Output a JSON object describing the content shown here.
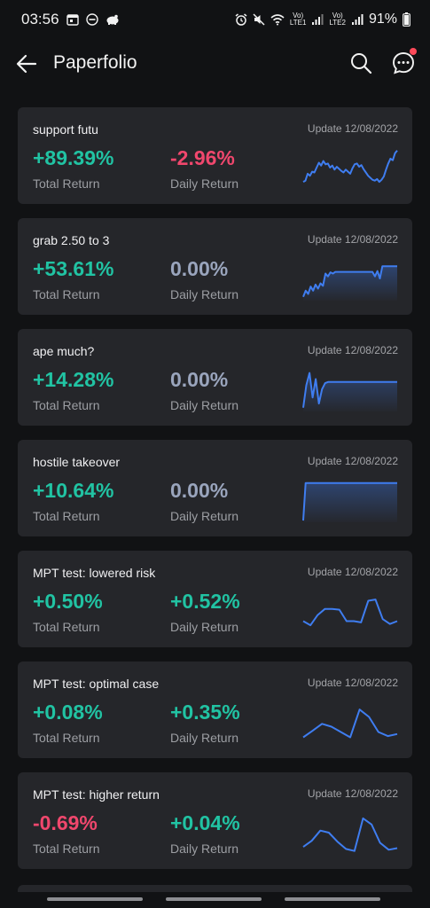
{
  "status_bar": {
    "time": "03:56",
    "net1": "Vo)",
    "net1b": "LTE1",
    "net2": "Vo)",
    "net2b": "LTE2",
    "battery": "91%"
  },
  "header": {
    "title": "Paperfolio",
    "icons": [
      "back-arrow-icon",
      "search-icon",
      "chat-bubble-icon"
    ]
  },
  "colors": {
    "positive": "#21c3a3",
    "negative": "#f0476d",
    "neutral": "#9aa5bd",
    "sparkline": "#3f7df0",
    "card_bg": "#25262a",
    "notification": "#ff4a5a"
  },
  "portfolios": [
    {
      "name": "support futu",
      "update": "Update 12/08/2022",
      "total_return": "+89.39%",
      "total_label": "Total Return",
      "daily_return": "-2.96%",
      "daily_label": "Daily Return",
      "total_sign": "pos",
      "daily_sign": "neg",
      "spark": [
        0.15,
        0.18,
        0.35,
        0.3,
        0.4,
        0.38,
        0.5,
        0.62,
        0.55,
        0.66,
        0.58,
        0.6,
        0.5,
        0.55,
        0.45,
        0.52,
        0.47,
        0.42,
        0.38,
        0.45,
        0.4,
        0.35,
        0.48,
        0.58,
        0.6,
        0.52,
        0.56,
        0.46,
        0.38,
        0.3,
        0.25,
        0.2,
        0.18,
        0.22,
        0.15,
        0.2,
        0.28,
        0.45,
        0.6,
        0.72,
        0.68,
        0.85,
        0.92
      ],
      "spark_fill": false
    },
    {
      "name": "grab 2.50 to 3",
      "update": "Update 12/08/2022",
      "total_return": "+53.61%",
      "total_label": "Total Return",
      "daily_return": "0.00%",
      "daily_label": "Daily Return",
      "total_sign": "pos",
      "daily_sign": "zero",
      "spark": [
        0.05,
        0.2,
        0.12,
        0.3,
        0.2,
        0.35,
        0.25,
        0.38,
        0.32,
        0.62,
        0.55,
        0.65,
        0.62,
        0.66,
        0.66,
        0.66,
        0.66,
        0.66,
        0.66,
        0.66,
        0.66,
        0.66,
        0.66,
        0.66,
        0.66,
        0.66,
        0.66,
        0.66,
        0.66,
        0.55,
        0.68,
        0.5,
        0.8,
        0.8,
        0.8,
        0.8,
        0.8,
        0.8,
        0.8
      ],
      "spark_fill": true
    },
    {
      "name": "ape much?",
      "update": "Update 12/08/2022",
      "total_return": "+14.28%",
      "total_label": "Total Return",
      "daily_return": "0.00%",
      "daily_label": "Daily Return",
      "total_sign": "pos",
      "daily_sign": "zero",
      "spark": [
        0.05,
        0.6,
        0.9,
        0.3,
        0.75,
        0.15,
        0.5,
        0.65,
        0.68,
        0.68,
        0.68,
        0.68,
        0.68,
        0.68,
        0.68,
        0.68,
        0.68,
        0.68,
        0.68,
        0.68,
        0.68,
        0.68,
        0.68,
        0.68,
        0.68,
        0.68,
        0.68,
        0.68,
        0.68,
        0.68,
        0.68
      ],
      "spark_fill": true
    },
    {
      "name": "hostile takeover",
      "update": "Update 12/08/2022",
      "total_return": "+10.64%",
      "total_label": "Total Return",
      "daily_return": "0.00%",
      "daily_label": "Daily Return",
      "total_sign": "pos",
      "daily_sign": "zero",
      "spark": [
        0.0,
        0.92,
        0.92,
        0.92,
        0.92,
        0.92,
        0.92,
        0.92,
        0.92,
        0.92,
        0.92,
        0.92,
        0.92,
        0.92,
        0.92,
        0.92,
        0.92,
        0.92,
        0.92,
        0.92,
        0.92,
        0.92,
        0.92,
        0.92,
        0.92,
        0.92,
        0.92,
        0.92,
        0.92,
        0.92,
        0.92,
        0.92,
        0.92,
        0.92,
        0.92,
        0.92,
        0.92,
        0.92,
        0.92,
        0.92,
        0.92
      ],
      "spark_fill": true
    },
    {
      "name": "MPT test: lowered risk",
      "update": "Update 12/08/2022",
      "total_return": "+0.50%",
      "total_label": "Total Return",
      "daily_return": "+0.52%",
      "daily_label": "Daily Return",
      "total_sign": "pos",
      "daily_sign": "pos",
      "spark": [
        0.25,
        0.15,
        0.4,
        0.55,
        0.55,
        0.53,
        0.25,
        0.25,
        0.22,
        0.75,
        0.78,
        0.3,
        0.18,
        0.25
      ],
      "spark_fill": false
    },
    {
      "name": "MPT test: optimal case",
      "update": "Update 12/08/2022",
      "total_return": "+0.08%",
      "total_label": "Total Return",
      "daily_return": "+0.35%",
      "daily_label": "Daily Return",
      "total_sign": "pos",
      "daily_sign": "pos",
      "spark": [
        0.12,
        0.28,
        0.45,
        0.38,
        0.25,
        0.12,
        0.8,
        0.62,
        0.25,
        0.15,
        0.2
      ],
      "spark_fill": false
    },
    {
      "name": "MPT test: higher return",
      "update": "Update 12/08/2022",
      "total_return": "-0.69%",
      "total_label": "Total Return",
      "daily_return": "+0.04%",
      "daily_label": "Daily Return",
      "total_sign": "neg",
      "daily_sign": "pos",
      "spark": [
        0.15,
        0.3,
        0.55,
        0.5,
        0.28,
        0.1,
        0.05,
        0.85,
        0.7,
        0.25,
        0.08,
        0.12
      ],
      "spark_fill": false
    }
  ]
}
